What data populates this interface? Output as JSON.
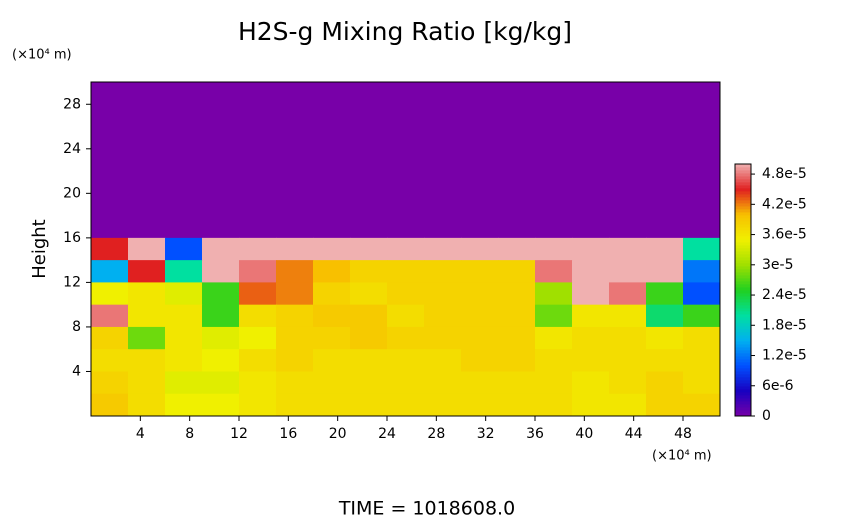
{
  "chart_data": {
    "type": "heatmap",
    "title": "H2S-g Mixing Ratio [kg/kg]",
    "y_label": "Height",
    "y_unit": "(×10⁴ m)",
    "x_unit": "(×10⁴ m)",
    "footer": "TIME = 1018608.0",
    "xlim": [
      0,
      51
    ],
    "ylim": [
      0,
      30
    ],
    "xticks": [
      4,
      8,
      12,
      16,
      20,
      24,
      28,
      32,
      36,
      40,
      44,
      48
    ],
    "yticks": [
      4,
      8,
      12,
      16,
      20,
      24,
      28
    ],
    "x": [
      1.5,
      4.5,
      7.5,
      10.5,
      13.5,
      16.5,
      19.5,
      22.5,
      25.5,
      28.5,
      31.5,
      34.5,
      37.5,
      40.5,
      43.5,
      46.5,
      49.5
    ],
    "y": [
      29,
      27,
      25,
      23,
      21,
      19,
      17,
      15,
      13,
      11,
      9,
      7,
      5,
      3,
      1
    ],
    "z": [
      [
        0,
        0,
        0,
        0,
        0,
        0,
        0,
        0,
        0,
        0,
        0,
        0,
        0,
        0,
        0,
        0,
        0
      ],
      [
        0,
        0,
        0,
        0,
        0,
        0,
        0,
        0,
        0,
        0,
        0,
        0,
        0,
        0,
        0,
        0,
        0
      ],
      [
        0,
        0,
        0,
        0,
        0,
        0,
        0,
        0,
        0,
        0,
        0,
        0,
        0,
        0,
        0,
        0,
        0
      ],
      [
        0,
        0,
        0,
        0,
        0,
        0,
        0,
        0,
        0,
        0,
        0,
        0,
        0,
        0,
        0,
        0,
        0
      ],
      [
        0,
        0,
        0,
        0,
        0,
        0,
        0,
        0,
        0,
        0,
        0,
        0,
        0,
        0,
        0,
        0,
        0
      ],
      [
        0,
        0,
        0,
        0,
        0,
        0,
        0,
        0,
        0,
        0,
        0,
        0,
        0,
        0,
        0,
        0,
        0
      ],
      [
        0,
        0,
        0,
        0,
        0,
        0,
        0,
        0,
        0,
        0,
        0,
        0,
        0,
        0,
        0,
        0,
        0
      ],
      [
        4.5e-05,
        5e-05,
        1e-05,
        5e-05,
        5e-05,
        5e-05,
        5e-05,
        5e-05,
        5e-05,
        5e-05,
        5e-05,
        5e-05,
        5e-05,
        5e-05,
        5e-05,
        5e-05,
        2e-05
      ],
      [
        1.5e-05,
        4.5e-05,
        2e-05,
        5e-05,
        4.8e-05,
        4.2e-05,
        4e-05,
        3.8e-05,
        3.8e-05,
        3.8e-05,
        3.8e-05,
        3.8e-05,
        4.8e-05,
        5e-05,
        5e-05,
        5e-05,
        1.2e-05
      ],
      [
        3.5e-05,
        3.6e-05,
        3.4e-05,
        2.6e-05,
        4.3e-05,
        4.2e-05,
        3.8e-05,
        3.7e-05,
        3.8e-05,
        3.8e-05,
        3.8e-05,
        3.8e-05,
        3e-05,
        5e-05,
        4.8e-05,
        2.6e-05,
        1e-05
      ],
      [
        4.8e-05,
        3.6e-05,
        3.6e-05,
        2.6e-05,
        3.7e-05,
        3.8e-05,
        3.9e-05,
        3.9e-05,
        3.7e-05,
        3.8e-05,
        3.8e-05,
        3.8e-05,
        2.8e-05,
        3.6e-05,
        3.6e-05,
        2.2e-05,
        2.6e-05
      ],
      [
        3.8e-05,
        2.8e-05,
        3.6e-05,
        3.4e-05,
        3.5e-05,
        3.8e-05,
        3.8e-05,
        3.9e-05,
        3.8e-05,
        3.8e-05,
        3.8e-05,
        3.8e-05,
        3.6e-05,
        3.7e-05,
        3.7e-05,
        3.6e-05,
        3.7e-05
      ],
      [
        3.7e-05,
        3.7e-05,
        3.6e-05,
        3.5e-05,
        3.7e-05,
        3.8e-05,
        3.7e-05,
        3.7e-05,
        3.7e-05,
        3.7e-05,
        3.8e-05,
        3.8e-05,
        3.7e-05,
        3.7e-05,
        3.7e-05,
        3.7e-05,
        3.7e-05
      ],
      [
        3.8e-05,
        3.7e-05,
        3.4e-05,
        3.4e-05,
        3.6e-05,
        3.7e-05,
        3.7e-05,
        3.7e-05,
        3.7e-05,
        3.7e-05,
        3.7e-05,
        3.7e-05,
        3.7e-05,
        3.6e-05,
        3.7e-05,
        3.8e-05,
        3.7e-05
      ],
      [
        3.9e-05,
        3.7e-05,
        3.5e-05,
        3.5e-05,
        3.6e-05,
        3.7e-05,
        3.7e-05,
        3.7e-05,
        3.7e-05,
        3.7e-05,
        3.7e-05,
        3.7e-05,
        3.7e-05,
        3.6e-05,
        3.6e-05,
        3.8e-05,
        3.8e-05
      ]
    ],
    "clim": [
      0,
      5e-05
    ],
    "colorscale": [
      "#7800a8",
      "#1800c0",
      "#0050ff",
      "#00b0f0",
      "#00e0a0",
      "#20d020",
      "#a0e000",
      "#f0f000",
      "#f8c000",
      "#e02020",
      "#f0b0b0"
    ],
    "cticks": [
      0,
      {
        "value": 6e-06,
        "label": "6e-6"
      },
      {
        "value": 1.2e-05,
        "label": "1.2e-5"
      },
      {
        "value": 1.8e-05,
        "label": "1.8e-5"
      },
      {
        "value": 2.4e-05,
        "label": "2.4e-5"
      },
      {
        "value": 3e-05,
        "label": "3e-5"
      },
      {
        "value": 3.6e-05,
        "label": "3.6e-5"
      },
      {
        "value": 4.2e-05,
        "label": "4.2e-5"
      },
      {
        "value": 4.8e-05,
        "label": "4.8e-5"
      }
    ]
  }
}
